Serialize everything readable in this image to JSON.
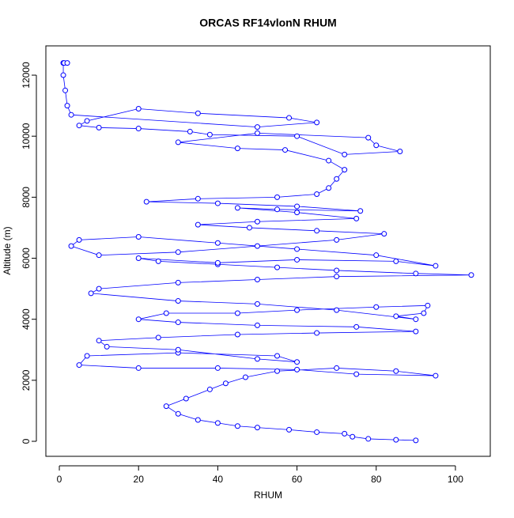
{
  "chart_data": {
    "type": "line",
    "title": "ORCAS RF14vlonN RHUM",
    "x_label": "RHUM",
    "y_label": "Altitude (m)",
    "series": [
      {
        "color": "#0000ff",
        "x": [
          90,
          85,
          78,
          74,
          72,
          65,
          58,
          50,
          45,
          40,
          35,
          30,
          27,
          32,
          38,
          42,
          47,
          55,
          70,
          85,
          95,
          75,
          60,
          40,
          20,
          5,
          7,
          30,
          55,
          60,
          50,
          30,
          12,
          10,
          25,
          45,
          65,
          90,
          75,
          50,
          30,
          20,
          27,
          45,
          60,
          80,
          93,
          92,
          85,
          90,
          70,
          50,
          30,
          8,
          10,
          30,
          50,
          70,
          104,
          90,
          70,
          55,
          40,
          25,
          20,
          40,
          60,
          85,
          95,
          80,
          60,
          40,
          20,
          5,
          3,
          10,
          30,
          50,
          70,
          82,
          65,
          48,
          35,
          50,
          75,
          60,
          45,
          55,
          76,
          60,
          40,
          22,
          35,
          55,
          65,
          68,
          70,
          72,
          68,
          57,
          45,
          30,
          50,
          78,
          80,
          86,
          72,
          60,
          38,
          33,
          20,
          10,
          5,
          7,
          20,
          35,
          58,
          65,
          50,
          3,
          2,
          1.5,
          1,
          1,
          1.2,
          2
        ],
        "values": [
          30,
          50,
          80,
          150,
          250,
          300,
          380,
          450,
          500,
          600,
          700,
          900,
          1150,
          1400,
          1700,
          1900,
          2100,
          2300,
          2400,
          2300,
          2150,
          2200,
          2350,
          2400,
          2400,
          2500,
          2800,
          2900,
          2800,
          2600,
          2700,
          3000,
          3100,
          3300,
          3400,
          3500,
          3550,
          3600,
          3750,
          3800,
          3900,
          4000,
          4200,
          4200,
          4300,
          4400,
          4450,
          4200,
          4100,
          4000,
          4300,
          4500,
          4600,
          4850,
          5000,
          5200,
          5300,
          5400,
          5450,
          5500,
          5600,
          5700,
          5800,
          5900,
          6000,
          5850,
          5950,
          5900,
          5750,
          6100,
          6300,
          6500,
          6700,
          6600,
          6400,
          6100,
          6200,
          6400,
          6600,
          6800,
          6900,
          7000,
          7100,
          7200,
          7300,
          7500,
          7650,
          7600,
          7550,
          7700,
          7800,
          7850,
          7950,
          8000,
          8100,
          8300,
          8600,
          8900,
          9200,
          9550,
          9600,
          9800,
          10100,
          9950,
          9700,
          9500,
          9400,
          10000,
          10050,
          10150,
          10250,
          10280,
          10350,
          10500,
          10900,
          10750,
          10600,
          10450,
          10300,
          10700,
          11000,
          11500,
          12000,
          12400,
          12400,
          12400
        ]
      }
    ],
    "xlim": [
      -3.4,
      108.8
    ],
    "ylim": [
      -492,
      12960
    ],
    "xticks": [
      0,
      20,
      40,
      60,
      80,
      100
    ],
    "yticks": [
      0,
      2000,
      4000,
      6000,
      8000,
      10000,
      12000
    ]
  }
}
